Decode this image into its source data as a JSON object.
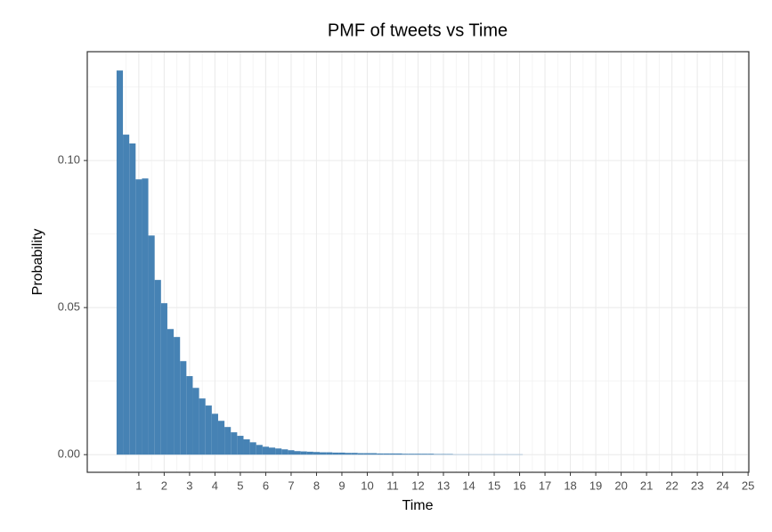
{
  "chart_data": {
    "type": "histogram",
    "title": "PMF of tweets vs Time",
    "x_label": "Time",
    "y_label": "Probability",
    "color": "#4682b4",
    "grid": true,
    "bins": [
      0.125,
      0.375,
      0.625,
      0.875,
      1.125,
      1.375,
      1.625,
      1.875,
      2.125,
      2.375,
      2.625,
      2.875,
      3.125,
      3.375,
      3.625,
      3.875,
      4.125,
      4.375,
      4.625,
      4.875,
      5.125,
      5.375,
      5.625,
      5.875,
      6.125,
      6.375,
      6.625,
      6.875,
      7.125,
      7.375,
      7.625,
      7.875,
      8.125,
      8.375,
      8.625,
      8.875,
      9.125,
      9.375,
      9.625,
      9.875,
      10.125,
      10.375,
      10.625,
      10.875,
      11.125,
      11.375,
      11.625,
      11.875,
      12.125,
      12.375,
      12.625,
      12.875,
      13.125,
      13.375,
      13.625,
      13.875,
      14.125,
      14.375,
      14.625,
      14.875,
      15.125,
      15.375,
      15.625,
      15.875,
      16.125
    ],
    "counts": [
      0.1306,
      0.1088,
      0.1058,
      0.0936,
      0.0939,
      0.0745,
      0.0594,
      0.0515,
      0.0427,
      0.04,
      0.0318,
      0.0267,
      0.0227,
      0.0191,
      0.0167,
      0.0139,
      0.0115,
      0.0094,
      0.0076,
      0.0064,
      0.0052,
      0.0042,
      0.0033,
      0.0027,
      0.0024,
      0.0021,
      0.0018,
      0.0015,
      0.0012,
      0.0011,
      0.001,
      0.0009,
      0.0008,
      0.0008,
      0.0007,
      0.0007,
      0.0006,
      0.0006,
      0.0005,
      0.0005,
      0.0005,
      0.0004,
      0.0004,
      0.0004,
      0.0004,
      0.0003,
      0.0003,
      0.0003,
      0.0003,
      0.0003,
      0.0002,
      0.0002,
      0.0002,
      0.0001,
      0.0001,
      0.0001,
      0.0001,
      0.0001,
      0.0001,
      0.0001,
      0.0001,
      0.0001,
      0.0001,
      0.0001,
      0.0001
    ],
    "xlim": [
      -1.03,
      25.03
    ],
    "ylim": [
      -0.006,
      0.137
    ],
    "xticks": [
      1,
      2,
      3,
      4,
      5,
      6,
      7,
      8,
      9,
      10,
      11,
      12,
      13,
      14,
      15,
      16,
      17,
      18,
      19,
      20,
      21,
      22,
      23,
      24,
      25
    ],
    "yticks": [
      {
        "value": 0,
        "label": "0.00"
      },
      {
        "value": 0.05,
        "label": "0.05"
      },
      {
        "value": 0.1,
        "label": "0.10"
      }
    ]
  }
}
